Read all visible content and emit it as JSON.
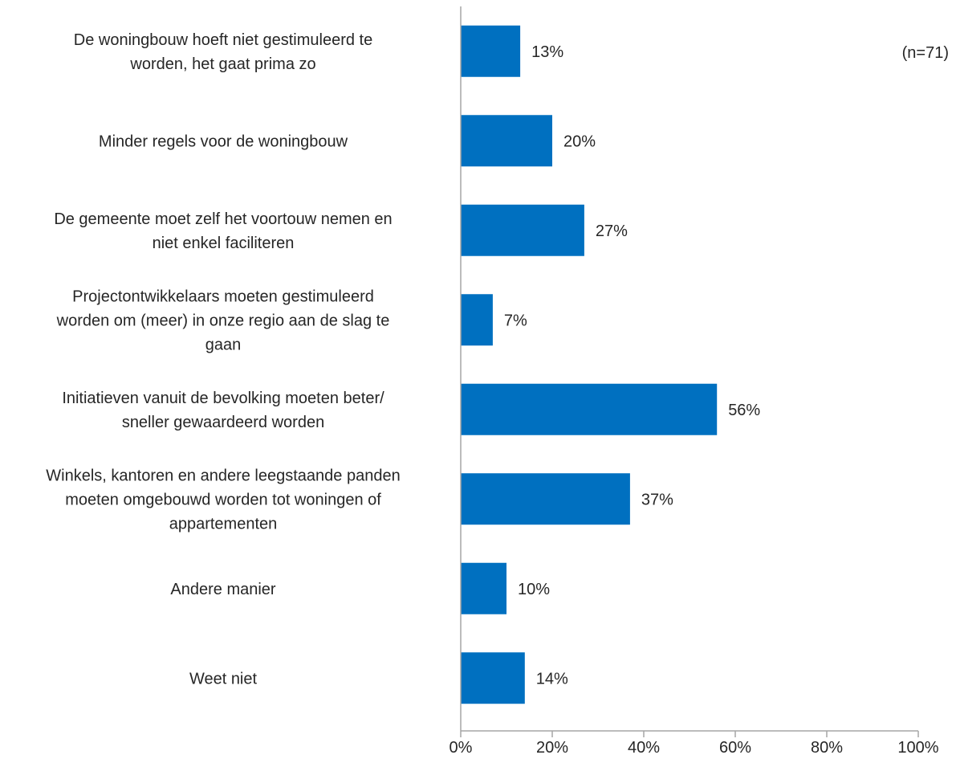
{
  "chart_data": {
    "type": "bar",
    "orientation": "horizontal",
    "categories": [
      [
        "De woningbouw hoeft niet gestimuleerd te",
        "worden, het gaat prima zo"
      ],
      [
        "Minder regels voor de woningbouw"
      ],
      [
        "De gemeente moet zelf het voortouw nemen en",
        "niet enkel faciliteren"
      ],
      [
        "Projectontwikkelaars moeten gestimuleerd",
        "worden om (meer) in onze regio aan de slag te",
        "gaan"
      ],
      [
        "Initiatieven vanuit de bevolking moeten beter/",
        "sneller gewaardeerd worden"
      ],
      [
        "Winkels, kantoren en andere leegstaande panden",
        "moeten omgebouwd worden tot woningen of",
        "appartementen"
      ],
      [
        "Andere manier"
      ],
      [
        "Weet niet"
      ]
    ],
    "values": [
      13,
      20,
      27,
      7,
      56,
      37,
      10,
      14
    ],
    "data_labels": [
      "13%",
      "20%",
      "27%",
      "7%",
      "56%",
      "37%",
      "10%",
      "14%"
    ],
    "xlim": [
      0,
      100
    ],
    "xticks": [
      0,
      20,
      40,
      60,
      80,
      100
    ],
    "xtick_labels": [
      "0%",
      "20%",
      "40%",
      "60%",
      "80%",
      "100%"
    ],
    "annotation": "(n=71)",
    "bar_color": "#0070C0",
    "grid": false,
    "legend": "none"
  }
}
